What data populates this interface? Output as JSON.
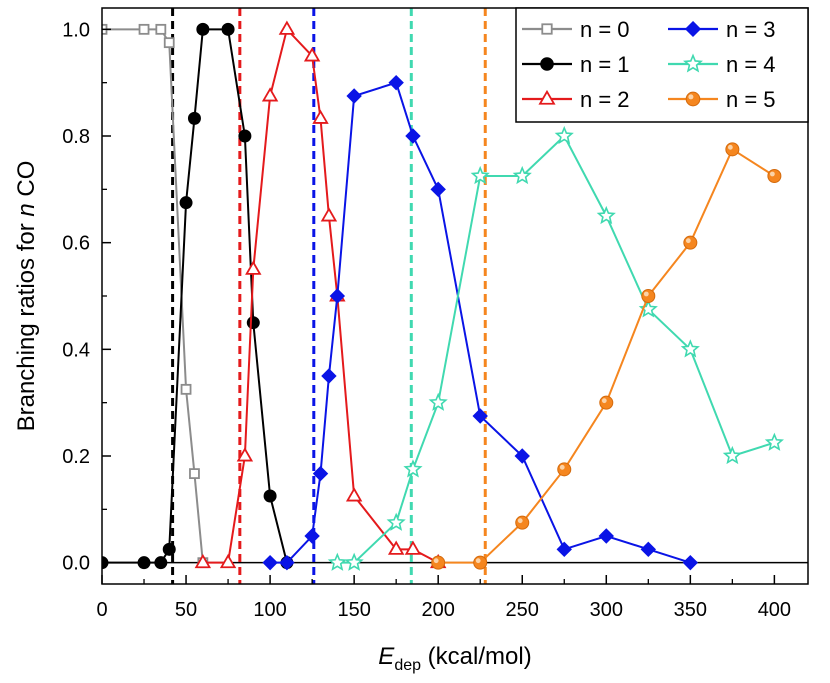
{
  "chart_data": {
    "type": "line",
    "xlabel_main": "E",
    "xlabel_sub": "dep",
    "xlabel_rest": " (kcal/mol)",
    "ylabel_prefix": "Branching ratios for ",
    "ylabel_italic": "n",
    "ylabel_suffix": " CO",
    "xlim": [
      0,
      420
    ],
    "ylim": [
      -0.04,
      1.04
    ],
    "xticks": [
      0,
      50,
      100,
      150,
      200,
      250,
      300,
      350,
      400
    ],
    "yticks": [
      0.0,
      0.2,
      0.4,
      0.6,
      0.8,
      1.0
    ],
    "ytick_labels": [
      "0.0",
      "0.2",
      "0.4",
      "0.6",
      "0.8",
      "1.0"
    ],
    "series": [
      {
        "name": "n = 0",
        "color": "#8c8c8c",
        "marker": "square-open",
        "points": [
          [
            0,
            1.0
          ],
          [
            25,
            1.0
          ],
          [
            35,
            1.0
          ],
          [
            40,
            0.975
          ],
          [
            50,
            0.325
          ],
          [
            55,
            0.167
          ],
          [
            60,
            0.0
          ]
        ]
      },
      {
        "name": "n = 1",
        "color": "#000000",
        "marker": "circle-filled",
        "points": [
          [
            0,
            0.0
          ],
          [
            25,
            0.0
          ],
          [
            35,
            0.0
          ],
          [
            40,
            0.025
          ],
          [
            50,
            0.675
          ],
          [
            55,
            0.833
          ],
          [
            60,
            1.0
          ],
          [
            75,
            1.0
          ],
          [
            85,
            0.8
          ],
          [
            90,
            0.45
          ],
          [
            100,
            0.125
          ],
          [
            110,
            0.0
          ]
        ]
      },
      {
        "name": "n = 2",
        "color": "#e41a1c",
        "marker": "triangle-open",
        "points": [
          [
            60,
            0.0
          ],
          [
            75,
            0.0
          ],
          [
            85,
            0.2
          ],
          [
            90,
            0.55
          ],
          [
            100,
            0.875
          ],
          [
            110,
            1.0
          ],
          [
            125,
            0.95
          ],
          [
            130,
            0.833
          ],
          [
            135,
            0.65
          ],
          [
            140,
            0.5
          ],
          [
            150,
            0.125
          ],
          [
            175,
            0.025
          ],
          [
            185,
            0.025
          ],
          [
            200,
            0.0
          ]
        ]
      },
      {
        "name": "n = 3",
        "color": "#0a14e6",
        "marker": "diamond-filled",
        "points": [
          [
            100,
            0.0
          ],
          [
            110,
            0.0
          ],
          [
            125,
            0.05
          ],
          [
            130,
            0.167
          ],
          [
            135,
            0.35
          ],
          [
            140,
            0.5
          ],
          [
            150,
            0.875
          ],
          [
            175,
            0.9
          ],
          [
            185,
            0.8
          ],
          [
            200,
            0.7
          ],
          [
            225,
            0.275
          ],
          [
            250,
            0.2
          ],
          [
            275,
            0.025
          ],
          [
            300,
            0.05
          ],
          [
            325,
            0.025
          ],
          [
            350,
            0.0
          ]
        ]
      },
      {
        "name": "n = 4",
        "color": "#40d9b0",
        "marker": "star-open",
        "points": [
          [
            140,
            0.0
          ],
          [
            150,
            0.0
          ],
          [
            175,
            0.075
          ],
          [
            185,
            0.175
          ],
          [
            200,
            0.3
          ],
          [
            225,
            0.725
          ],
          [
            250,
            0.725
          ],
          [
            275,
            0.8
          ],
          [
            300,
            0.65
          ],
          [
            325,
            0.475
          ],
          [
            350,
            0.4
          ],
          [
            375,
            0.2
          ],
          [
            400,
            0.225
          ]
        ]
      },
      {
        "name": "n = 5",
        "color": "#f5861f",
        "marker": "sphere-filled",
        "points": [
          [
            200,
            0.0
          ],
          [
            225,
            0.0
          ],
          [
            250,
            0.075
          ],
          [
            275,
            0.175
          ],
          [
            300,
            0.3
          ],
          [
            325,
            0.5
          ],
          [
            350,
            0.6
          ],
          [
            375,
            0.775
          ],
          [
            400,
            0.725
          ]
        ]
      }
    ],
    "vlines": [
      {
        "x": 42,
        "color": "#000000"
      },
      {
        "x": 82,
        "color": "#e41a1c"
      },
      {
        "x": 126,
        "color": "#0a14e6"
      },
      {
        "x": 184,
        "color": "#40d9b0"
      },
      {
        "x": 228,
        "color": "#f5861f"
      }
    ],
    "legend_position": "top-right"
  }
}
